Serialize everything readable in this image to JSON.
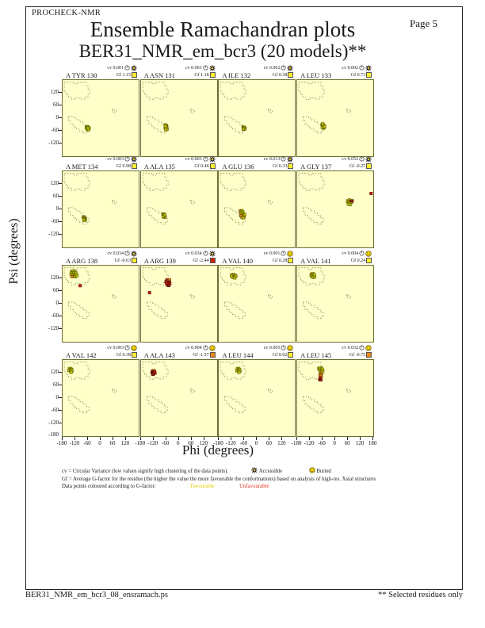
{
  "header": {
    "app_name": "PROCHECK-NMR",
    "page_label": "Page 5",
    "title": "Ensemble Ramachandran plots",
    "subtitle": "BER31_NMR_em_bcr3 (20 models)**"
  },
  "axes": {
    "x_title": "Phi (degrees)",
    "y_title": "Psi (degrees)",
    "x_tick_labels": [
      "-180",
      "-120",
      "-60",
      "0",
      "60",
      "120"
    ],
    "x_last_tick_label": "180",
    "y_tick_labels": [
      "120",
      "60",
      "0",
      "-60",
      "-120"
    ],
    "y_bottom_tick_label": "-180"
  },
  "labels": {
    "cv_prefix": "cv",
    "gf_prefix": "Gf"
  },
  "legend": {
    "line1": "cv = Circular Variance (low values signify high clustering of the data points).",
    "accessible_label": "Accessible",
    "buried_label": "Buried",
    "line2": "Gf = Average G-factor for the residue (the higher the value the more favourable the conformations) based on analysis of high-res. Xstal structures",
    "line3_prefix": "Data points coloured according to G-factor:",
    "favourable_label": "Favourable",
    "unfavourable_label": "Unfavourable"
  },
  "footer": {
    "left": "BER31_NMR_em_bcr3_08_ensramach.ps",
    "right": "** Selected residues only"
  },
  "colors": {
    "plot_bg": "#ffffc9",
    "plot_border": "#6e6e2e",
    "region_dash": "#8f8f60",
    "point_f_fill": "#c8c800",
    "point_f_stroke": "#5e5e00",
    "point_m_fill": "#e08818",
    "point_m_stroke": "#7a4000",
    "point_u_fill": "#cc2211",
    "point_u_stroke": "#661100",
    "point_d_fill": "#992211",
    "point_d_stroke": "#440800",
    "gf_fav": "#ffee33",
    "gf_mid": "#ee8811",
    "gf_unf": "#cc2200",
    "smiley": "#ffdd00",
    "star": "#111111"
  },
  "chart_data": {
    "type": "scatter",
    "grid": [
      4,
      4
    ],
    "xlim": [
      -180,
      180
    ],
    "ylim": [
      -180,
      180
    ],
    "xlabel": "Phi (degrees)",
    "ylabel": "Psi (degrees)",
    "point_status_legend": {
      "f": "favourable",
      "m": "intermediate",
      "u": "unfavourable",
      "d": "strongly-unfavourable"
    },
    "subplots": [
      {
        "residue": "A TYR 130",
        "cv": "0.001",
        "gf": "1.15",
        "exposure": "accessible",
        "gf_status": "fav",
        "points": [
          [
            -68,
            -42,
            "f"
          ],
          [
            -62,
            -40,
            "f"
          ],
          [
            -58,
            -44,
            "f"
          ],
          [
            -66,
            -48,
            "f"
          ],
          [
            -60,
            -50,
            "f"
          ],
          [
            -55,
            -48,
            "f"
          ],
          [
            -63,
            -54,
            "f"
          ],
          [
            -57,
            -55,
            "f"
          ],
          [
            -65,
            -45,
            "f"
          ],
          [
            -59,
            -47,
            "f"
          ]
        ]
      },
      {
        "residue": "A ASN 131",
        "cv": "0.003",
        "gf": "1.18",
        "exposure": "accessible",
        "gf_status": "fav",
        "points": [
          [
            -66,
            -32,
            "f"
          ],
          [
            -60,
            -35,
            "f"
          ],
          [
            -64,
            -40,
            "f"
          ],
          [
            -58,
            -42,
            "f"
          ],
          [
            -66,
            -46,
            "f"
          ],
          [
            -61,
            -49,
            "f"
          ],
          [
            -57,
            -52,
            "f"
          ],
          [
            -63,
            -55,
            "f"
          ],
          [
            -60,
            -44,
            "f"
          ],
          [
            -65,
            -37,
            "f"
          ]
        ]
      },
      {
        "residue": "A ILE 132",
        "cv": "0.002",
        "gf": "0.38",
        "exposure": "accessible",
        "gf_status": "fav",
        "points": [
          [
            -65,
            -42,
            "f"
          ],
          [
            -60,
            -44,
            "f"
          ],
          [
            -56,
            -47,
            "f"
          ],
          [
            -63,
            -49,
            "f"
          ],
          [
            -58,
            -52,
            "f"
          ],
          [
            -62,
            -45,
            "f"
          ],
          [
            -59,
            -48,
            "f"
          ],
          [
            -64,
            -53,
            "f"
          ]
        ]
      },
      {
        "residue": "A LEU 133",
        "cv": "0.002",
        "gf": "0.73",
        "exposure": "accessible",
        "gf_status": "fav",
        "points": [
          [
            -62,
            -30,
            "f"
          ],
          [
            -55,
            -32,
            "f"
          ],
          [
            -60,
            -36,
            "f"
          ],
          [
            -53,
            -38,
            "f"
          ],
          [
            -58,
            -41,
            "f"
          ],
          [
            -52,
            -44,
            "f"
          ],
          [
            -57,
            -47,
            "f"
          ],
          [
            -61,
            -43,
            "f"
          ],
          [
            -56,
            -35,
            "f"
          ],
          [
            -50,
            -40,
            "f"
          ],
          [
            -59,
            -27,
            "f"
          ]
        ]
      },
      {
        "residue": "A MET 134",
        "cv": "0.003",
        "gf": "0.98",
        "exposure": "accessible",
        "gf_status": "fav",
        "points": [
          [
            -82,
            -36,
            "f"
          ],
          [
            -76,
            -38,
            "f"
          ],
          [
            -80,
            -42,
            "f"
          ],
          [
            -74,
            -44,
            "f"
          ],
          [
            -78,
            -47,
            "f"
          ],
          [
            -72,
            -48,
            "f"
          ],
          [
            -76,
            -52,
            "f"
          ],
          [
            -80,
            -50,
            "f"
          ]
        ]
      },
      {
        "residue": "A ALA 135",
        "cv": "0.003",
        "gf": "0.46",
        "exposure": "accessible",
        "gf_status": "fav",
        "points": [
          [
            -76,
            -22,
            "f"
          ],
          [
            -70,
            -24,
            "f"
          ],
          [
            -74,
            -28,
            "f"
          ],
          [
            -68,
            -30,
            "f"
          ],
          [
            -72,
            -33,
            "f"
          ],
          [
            -66,
            -35,
            "f"
          ],
          [
            -70,
            -38,
            "f"
          ],
          [
            -75,
            -35,
            "f"
          ],
          [
            -68,
            -26,
            "f"
          ]
        ]
      },
      {
        "residue": "A GLU 136",
        "cv": "0.013",
        "gf": "0.33",
        "exposure": "accessible",
        "gf_status": "fav",
        "points": [
          [
            -78,
            -8,
            "m"
          ],
          [
            -70,
            -6,
            "f"
          ],
          [
            -74,
            -14,
            "f"
          ],
          [
            -66,
            -12,
            "f"
          ],
          [
            -70,
            -20,
            "f"
          ],
          [
            -63,
            -22,
            "f"
          ],
          [
            -74,
            -25,
            "f"
          ],
          [
            -67,
            -30,
            "f"
          ],
          [
            -60,
            -33,
            "f"
          ],
          [
            -70,
            -38,
            "f"
          ],
          [
            -64,
            -40,
            "f"
          ],
          [
            -57,
            -25,
            "f"
          ],
          [
            -76,
            -30,
            "m"
          ]
        ]
      },
      {
        "residue": "A GLY 137",
        "cv": "0.052",
        "gf": "-0.27",
        "exposure": "accessible",
        "gf_status": "fav",
        "points": [
          [
            62,
            42,
            "f"
          ],
          [
            68,
            44,
            "f"
          ],
          [
            58,
            36,
            "f"
          ],
          [
            65,
            35,
            "f"
          ],
          [
            72,
            38,
            "m"
          ],
          [
            78,
            38,
            "m"
          ],
          [
            75,
            32,
            "f"
          ],
          [
            68,
            28,
            "f"
          ],
          [
            62,
            25,
            "f"
          ],
          [
            70,
            22,
            "f"
          ],
          [
            80,
            40,
            "d"
          ],
          [
            170,
            75,
            "u"
          ]
        ]
      },
      {
        "residue": "A ARG 138",
        "cv": "0.034",
        "gf": "-0.63",
        "exposure": "accessible",
        "gf_status": "fav",
        "points": [
          [
            -138,
            152,
            "f"
          ],
          [
            -130,
            155,
            "f"
          ],
          [
            -122,
            152,
            "f"
          ],
          [
            -135,
            146,
            "f"
          ],
          [
            -127,
            144,
            "f"
          ],
          [
            -118,
            146,
            "f"
          ],
          [
            -140,
            138,
            "f"
          ],
          [
            -132,
            136,
            "f"
          ],
          [
            -124,
            138,
            "f"
          ],
          [
            -115,
            140,
            "f"
          ],
          [
            -128,
            130,
            "f"
          ],
          [
            -120,
            128,
            "f"
          ],
          [
            -112,
            132,
            "f"
          ],
          [
            -135,
            128,
            "m"
          ],
          [
            -97,
            85,
            "u"
          ]
        ]
      },
      {
        "residue": "A ARG 139",
        "cv": "0.034",
        "gf": "-2.44",
        "exposure": "accessible",
        "gf_status": "unf",
        "points": [
          [
            -58,
            112,
            "u"
          ],
          [
            -50,
            108,
            "m"
          ],
          [
            -45,
            112,
            "m"
          ],
          [
            -62,
            104,
            "u"
          ],
          [
            -54,
            100,
            "u"
          ],
          [
            -47,
            102,
            "d"
          ],
          [
            -58,
            95,
            "d"
          ],
          [
            -51,
            92,
            "u"
          ],
          [
            -44,
            96,
            "u"
          ],
          [
            -55,
            88,
            "u"
          ],
          [
            -48,
            86,
            "d"
          ],
          [
            -60,
            99,
            "u"
          ],
          [
            -140,
            52,
            "u"
          ]
        ]
      },
      {
        "residue": "A VAL 140",
        "cv": "0.001",
        "gf": "0.28",
        "exposure": "buried",
        "gf_status": "fav",
        "points": [
          [
            -118,
            136,
            "f"
          ],
          [
            -110,
            138,
            "f"
          ],
          [
            -103,
            134,
            "f"
          ],
          [
            -115,
            130,
            "f"
          ],
          [
            -107,
            128,
            "f"
          ],
          [
            -99,
            130,
            "f"
          ],
          [
            -112,
            124,
            "f"
          ],
          [
            -104,
            122,
            "f"
          ],
          [
            -120,
            132,
            "f"
          ]
        ]
      },
      {
        "residue": "A VAL 141",
        "cv": "0.004",
        "gf": "0.24",
        "exposure": "buried",
        "gf_status": "fav",
        "points": [
          [
            -112,
            140,
            "m"
          ],
          [
            -106,
            142,
            "f"
          ],
          [
            -114,
            134,
            "f"
          ],
          [
            -107,
            132,
            "f"
          ],
          [
            -100,
            134,
            "f"
          ],
          [
            -110,
            127,
            "f"
          ],
          [
            -103,
            125,
            "f"
          ],
          [
            -97,
            128,
            "f"
          ],
          [
            -99,
            138,
            "f"
          ]
        ]
      },
      {
        "residue": "A VAL 142",
        "cv": "0.003",
        "gf": "0.38",
        "exposure": "buried",
        "gf_status": "fav",
        "points": [
          [
            -148,
            138,
            "f"
          ],
          [
            -141,
            140,
            "f"
          ],
          [
            -144,
            133,
            "f"
          ],
          [
            -137,
            135,
            "f"
          ],
          [
            -150,
            130,
            "f"
          ],
          [
            -143,
            127,
            "f"
          ],
          [
            -136,
            129,
            "f"
          ],
          [
            -140,
            122,
            "f"
          ]
        ]
      },
      {
        "residue": "A ALA 143",
        "cv": "0.004",
        "gf": "-1.57",
        "exposure": "buried",
        "gf_status": "mid",
        "points": [
          [
            -126,
            128,
            "u"
          ],
          [
            -119,
            130,
            "m"
          ],
          [
            -123,
            122,
            "u"
          ],
          [
            -116,
            124,
            "u"
          ],
          [
            -128,
            120,
            "d"
          ],
          [
            -121,
            115,
            "u"
          ],
          [
            -114,
            118,
            "u"
          ],
          [
            -124,
            112,
            "d"
          ]
        ]
      },
      {
        "residue": "A LEU 144",
        "cv": "0.005",
        "gf": "0.02",
        "exposure": "buried",
        "gf_status": "fav",
        "points": [
          [
            -92,
            138,
            "f"
          ],
          [
            -85,
            140,
            "f"
          ],
          [
            -88,
            132,
            "f"
          ],
          [
            -81,
            134,
            "f"
          ],
          [
            -94,
            130,
            "f"
          ],
          [
            -87,
            126,
            "f"
          ],
          [
            -80,
            128,
            "f"
          ],
          [
            -84,
            122,
            "f"
          ]
        ]
      },
      {
        "residue": "A LEU 145",
        "cv": "0.032",
        "gf": "-0.75",
        "exposure": "buried",
        "gf_status": "mid",
        "points": [
          [
            -78,
            140,
            "f"
          ],
          [
            -70,
            142,
            "f"
          ],
          [
            -63,
            138,
            "f"
          ],
          [
            -74,
            133,
            "f"
          ],
          [
            -66,
            130,
            "f"
          ],
          [
            -59,
            132,
            "f"
          ],
          [
            -70,
            124,
            "f"
          ],
          [
            -63,
            122,
            "f"
          ],
          [
            -68,
            115,
            "m"
          ],
          [
            -72,
            108,
            "m"
          ],
          [
            -66,
            104,
            "m"
          ],
          [
            -70,
            96,
            "u"
          ],
          [
            -74,
            88,
            "u"
          ],
          [
            -68,
            86,
            "d"
          ]
        ]
      }
    ]
  }
}
